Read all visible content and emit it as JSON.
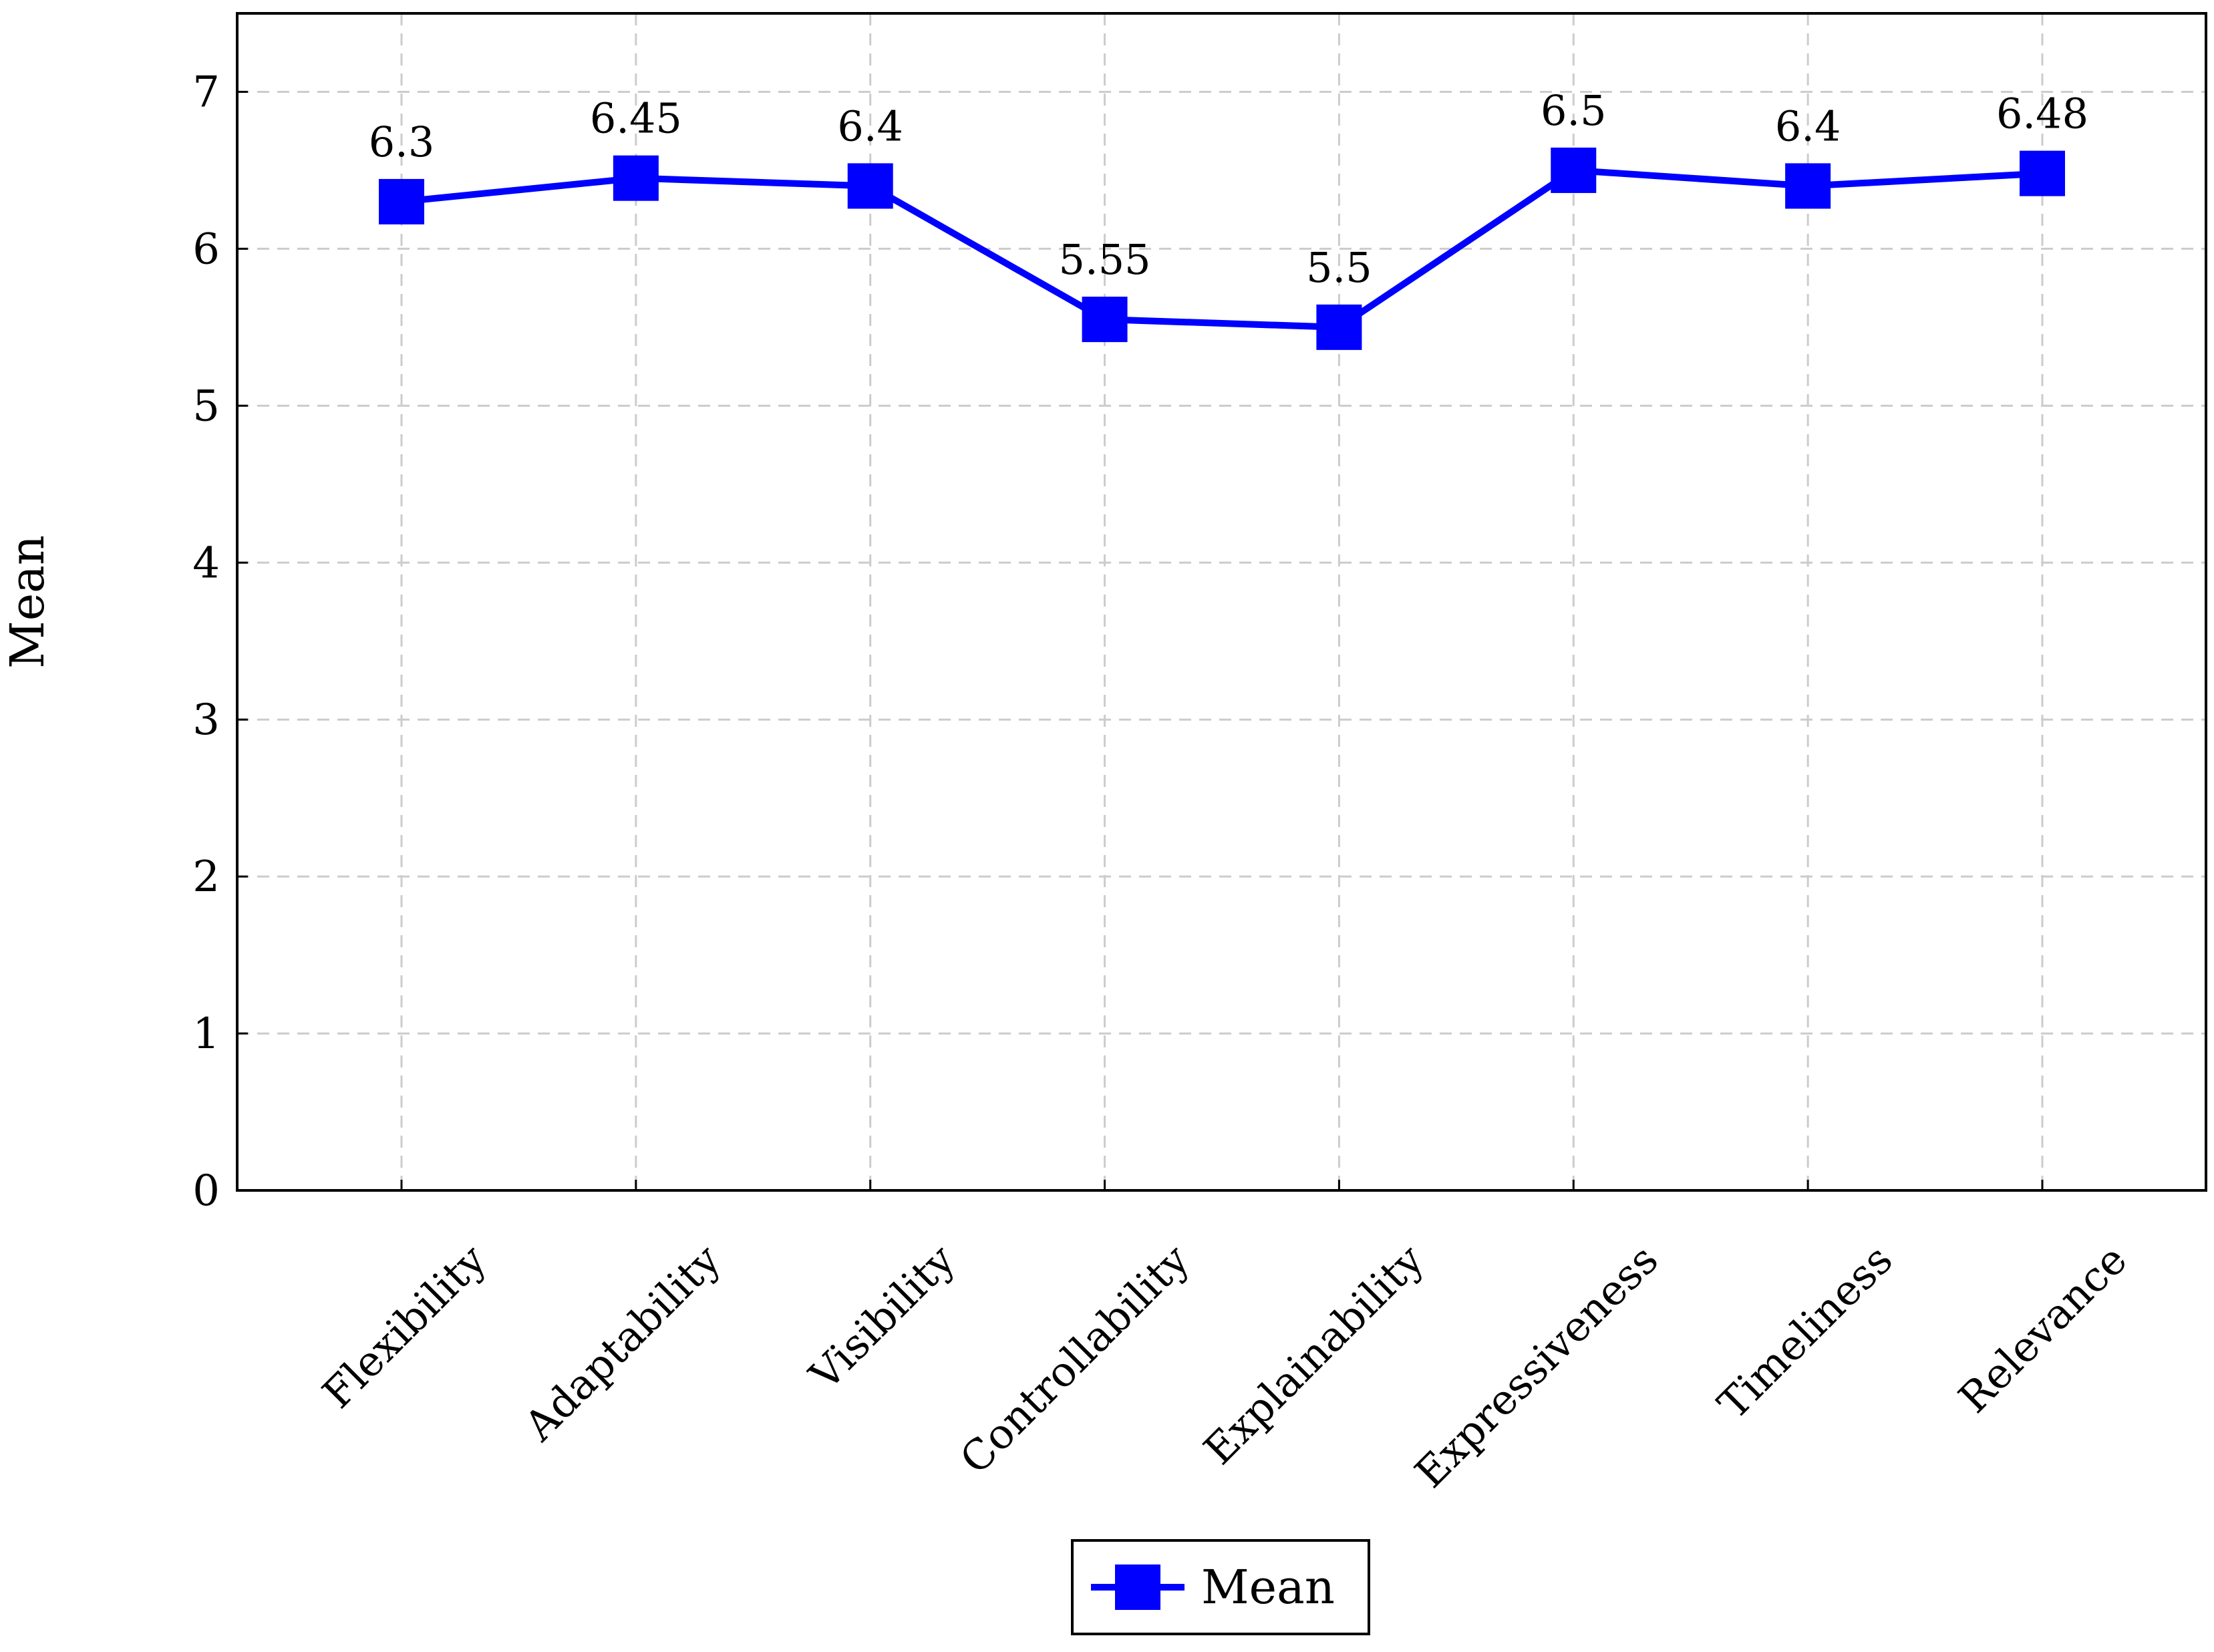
{
  "chart_data": {
    "type": "line",
    "categories": [
      "Flexibility",
      "Adaptability",
      "Visibility",
      "Controllability",
      "Explainability",
      "Expressiveness",
      "Timeliness",
      "Relevance"
    ],
    "series": [
      {
        "name": "Mean",
        "values": [
          6.3,
          6.45,
          6.4,
          5.55,
          5.5,
          6.5,
          6.4,
          6.48
        ],
        "color": "#0000ff",
        "marker": "square"
      }
    ],
    "data_labels": [
      "6.3",
      "6.45",
      "6.4",
      "5.55",
      "5.5",
      "6.5",
      "6.4",
      "6.48"
    ],
    "ylabel": "Mean",
    "ylim": [
      0,
      7.5
    ],
    "yticks": [
      0,
      1,
      2,
      3,
      4,
      5,
      6,
      7
    ],
    "grid": true,
    "legend_position": "bottom-center"
  }
}
